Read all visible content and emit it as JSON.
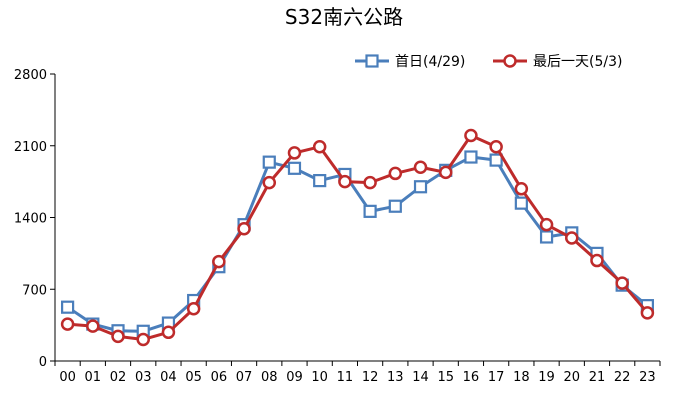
{
  "chart_data": {
    "type": "line",
    "title": "S32南六公路",
    "categories": [
      "00",
      "01",
      "02",
      "03",
      "04",
      "05",
      "06",
      "07",
      "08",
      "09",
      "10",
      "11",
      "12",
      "13",
      "14",
      "15",
      "16",
      "17",
      "18",
      "19",
      "20",
      "21",
      "22",
      "23"
    ],
    "ylim": [
      0,
      2800
    ],
    "yticks": [
      0,
      700,
      1400,
      2100,
      2800
    ],
    "grid": false,
    "legend_position": "top-right",
    "series": [
      {
        "name": "首日(4/29)",
        "color": "#4a7ebb",
        "marker": "square",
        "values": [
          525,
          360,
          295,
          290,
          370,
          590,
          920,
          1330,
          1940,
          1880,
          1760,
          1820,
          1460,
          1510,
          1700,
          1860,
          1990,
          1960,
          1540,
          1210,
          1250,
          1050,
          740,
          540
        ]
      },
      {
        "name": "最后一天(5/3)",
        "color": "#be2b2b",
        "marker": "circle",
        "values": [
          360,
          340,
          240,
          210,
          280,
          510,
          970,
          1290,
          1740,
          2030,
          2090,
          1750,
          1740,
          1830,
          1890,
          1840,
          2200,
          2090,
          1680,
          1330,
          1200,
          980,
          760,
          470
        ]
      }
    ]
  }
}
